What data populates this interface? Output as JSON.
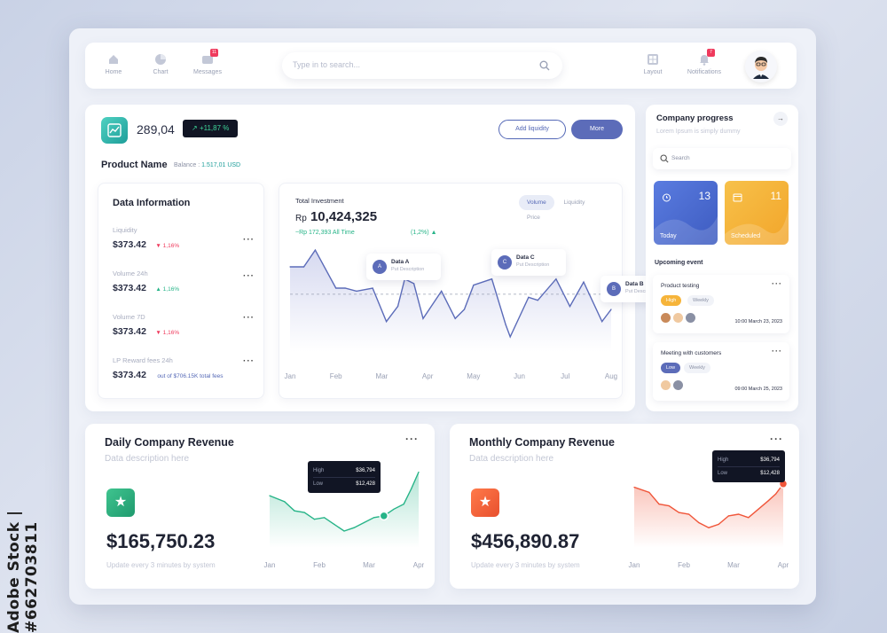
{
  "watermark": "Adobe Stock | #662703811",
  "topbar": {
    "nav": [
      {
        "label": "Home",
        "icon": "home-icon"
      },
      {
        "label": "Chart",
        "icon": "pie-chart-icon"
      },
      {
        "label": "Messages",
        "icon": "message-icon",
        "badge": "11"
      }
    ],
    "search_placeholder": "Type in to search...",
    "right_nav": [
      {
        "label": "Layout",
        "icon": "layout-icon"
      },
      {
        "label": "Notifications",
        "icon": "bell-icon",
        "badge": "7"
      }
    ]
  },
  "main": {
    "price": "289,04",
    "change": "+11,87 %",
    "add_liquidity": "Add liquidity",
    "more": "More",
    "product_name": "Product Name",
    "balance_label": "Balance : ",
    "balance_value": "1.517,01 USD"
  },
  "data_info": {
    "title": "Data Information",
    "rows": [
      {
        "label": "Liquidity",
        "value": "$373.42",
        "change": "1,16%",
        "direction": "down"
      },
      {
        "label": "Volume 24h",
        "value": "$373.42",
        "change": "1,16%",
        "direction": "up"
      },
      {
        "label": "Volume 7D",
        "value": "$373.42",
        "change": "1,16%",
        "direction": "down"
      },
      {
        "label": "LP Reward fees 24h",
        "value": "$373.42",
        "note": "out of $706.15K total fees"
      }
    ]
  },
  "investment": {
    "label": "Total Investment",
    "currency": "Rp",
    "amount": "10,424,325",
    "sub": "~Rp 172,393  All Time",
    "pct": "(1,2%)",
    "tabs": [
      "Volume",
      "Liquidity",
      "Price"
    ],
    "active_tab": "Volume",
    "tooltips": [
      {
        "letter": "A",
        "title": "Data A",
        "desc": "Put Description"
      },
      {
        "letter": "C",
        "title": "Data C",
        "desc": "Put Description"
      },
      {
        "letter": "B",
        "title": "Data B",
        "desc": "Put Description"
      }
    ]
  },
  "company": {
    "title": "Company progress",
    "lorem": "Lorem Ipsum is simply dummy",
    "search": "Search",
    "tiles": [
      {
        "name": "Today",
        "num": "13",
        "color": "#4f6fd0"
      },
      {
        "name": "Scheduled",
        "num": "11",
        "color": "#f4b23c"
      }
    ],
    "upcoming": "Upcoming event",
    "events": [
      {
        "title": "Product testing",
        "chips": [
          "High",
          "Weekly"
        ],
        "date": "10:00 March 23, 2023"
      },
      {
        "title": "Meeting with customers",
        "chips": [
          "Low",
          "Weekly"
        ],
        "date": "09:00 March 25, 2023"
      }
    ]
  },
  "daily": {
    "title": "Daily Company Revenue",
    "desc": "Data description here",
    "amount": "$165,750.23",
    "updated": "Update every 3 minutes by system",
    "high_label": "High",
    "high": "$36,794",
    "low_label": "Low",
    "low": "$12,428",
    "color": "#27b488"
  },
  "monthly": {
    "title": "Monthly Company Revenue",
    "desc": "Data description here",
    "amount": "$456,890.87",
    "updated": "Update every 3 minutes by system",
    "high_label": "High",
    "high": "$36,794",
    "low_label": "Low",
    "low": "$12,428",
    "color": "#f0563a"
  },
  "chart_data": [
    {
      "type": "area",
      "title": "Total Investment",
      "categories": [
        "Jan",
        "Feb",
        "Mar",
        "Apr",
        "May",
        "Jun",
        "Jul",
        "Aug"
      ],
      "x": [
        0,
        0.3,
        0.55,
        1.0,
        1.2,
        1.45,
        1.8,
        2.1,
        2.35,
        2.5,
        2.7,
        2.9,
        3.3,
        3.6,
        3.8,
        4.0,
        4.4,
        4.7,
        4.8,
        5.2,
        5.4,
        5.8,
        6.1,
        6.4,
        6.8,
        7.0
      ],
      "values": [
        56,
        56,
        67,
        42,
        42,
        40,
        42,
        20,
        30,
        48,
        45,
        22,
        40,
        22,
        28,
        44,
        48,
        18,
        10,
        36,
        34,
        48,
        30,
        46,
        20,
        28
      ],
      "ylim": [
        0,
        70
      ],
      "reference_line": 38
    },
    {
      "type": "area",
      "title": "Daily Company Revenue",
      "categories": [
        "Jan",
        "Feb",
        "Mar",
        "Apr"
      ],
      "x": [
        0,
        0.3,
        0.5,
        0.7,
        0.9,
        1.1,
        1.3,
        1.5,
        1.7,
        1.9,
        2.1,
        2.3,
        2.5,
        2.7,
        2.85,
        3.0
      ],
      "values": [
        62,
        55,
        44,
        42,
        34,
        36,
        28,
        20,
        24,
        30,
        36,
        38,
        46,
        52,
        70,
        90
      ],
      "ylim": [
        0,
        100
      ],
      "highlight_x": 2.3
    },
    {
      "type": "area",
      "title": "Monthly Company Revenue",
      "categories": [
        "Jan",
        "Feb",
        "Mar",
        "Apr"
      ],
      "x": [
        0,
        0.3,
        0.5,
        0.7,
        0.9,
        1.1,
        1.3,
        1.5,
        1.7,
        1.9,
        2.1,
        2.3,
        2.5,
        2.7,
        2.85,
        3.0
      ],
      "values": [
        72,
        66,
        52,
        50,
        42,
        40,
        30,
        24,
        28,
        38,
        40,
        36,
        46,
        56,
        64,
        76
      ],
      "ylim": [
        0,
        100
      ],
      "highlight_x": 3.0
    }
  ]
}
